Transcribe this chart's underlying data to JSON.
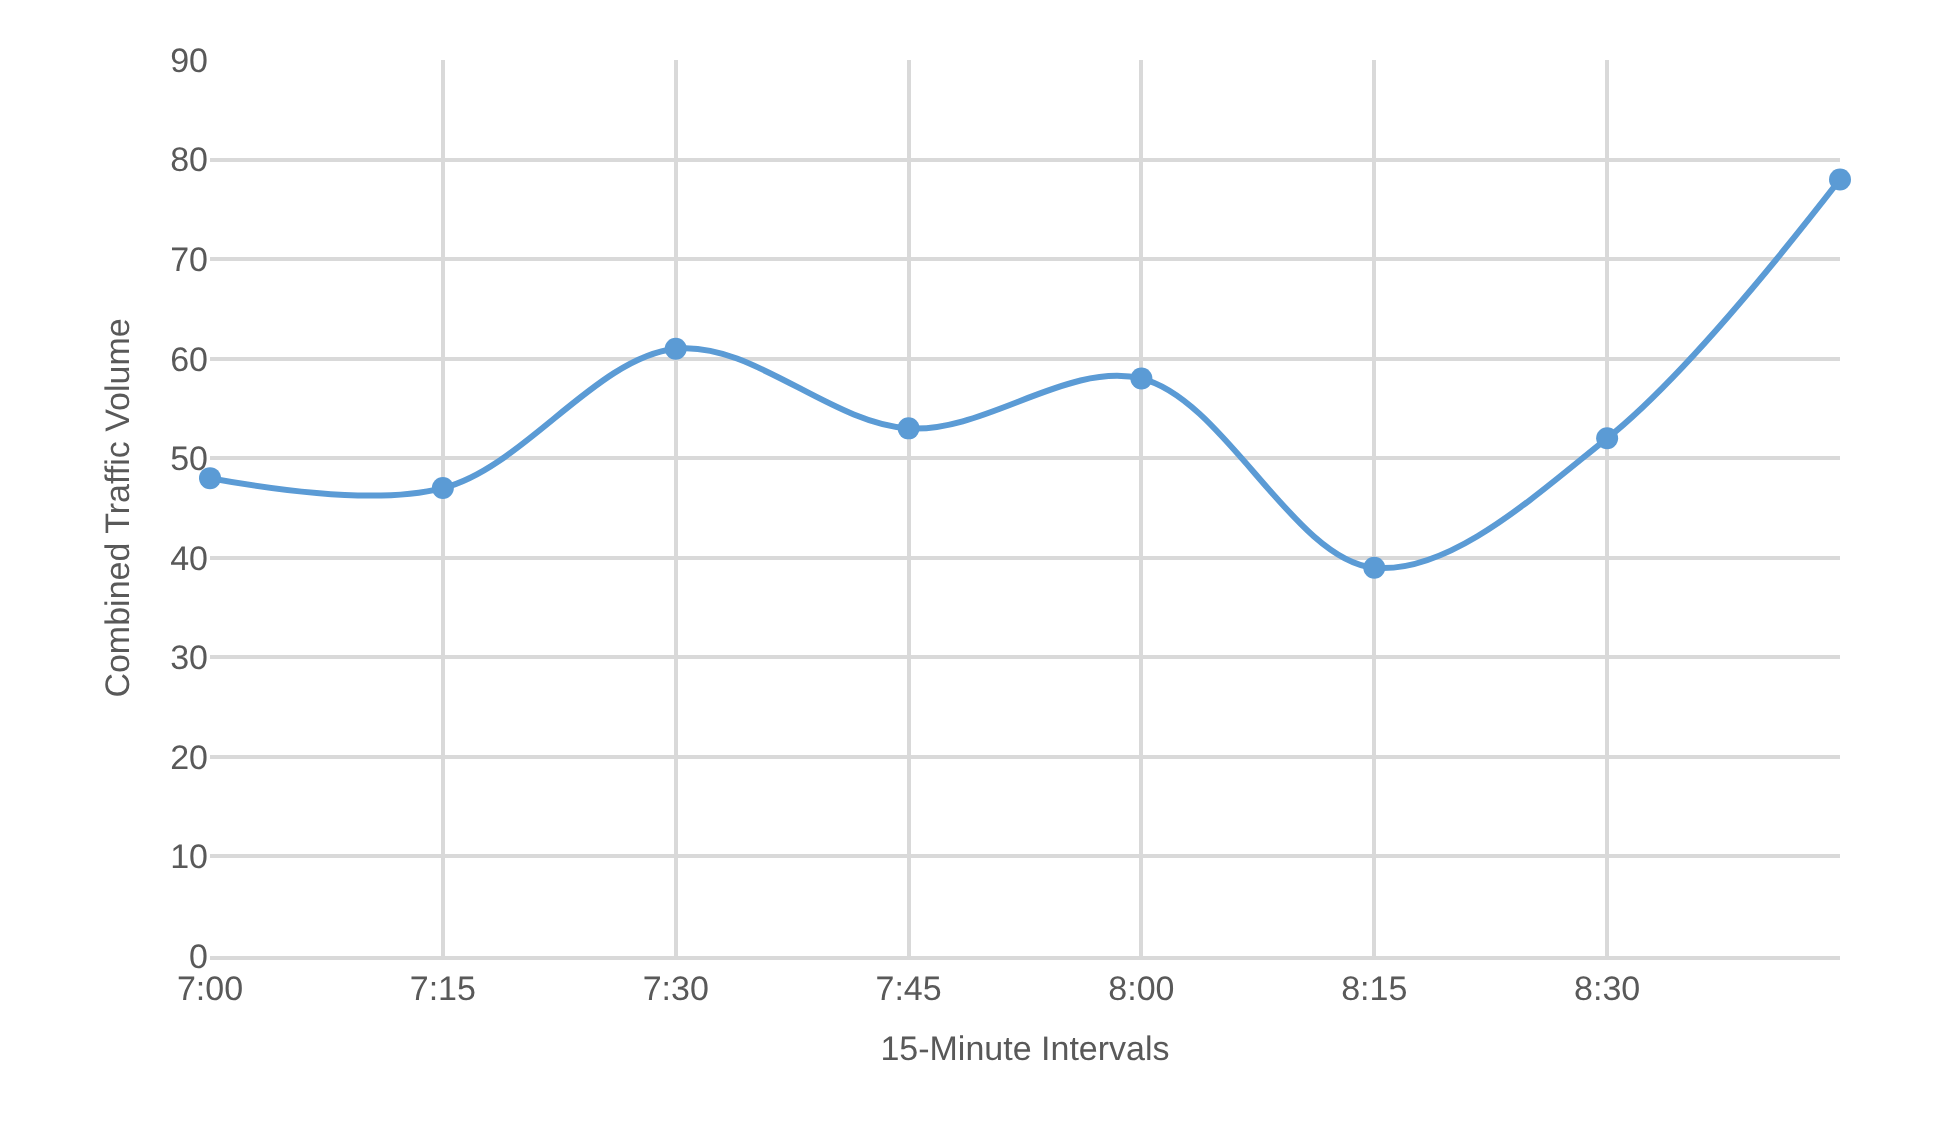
{
  "chart_data": {
    "type": "line",
    "xlabel": "15-Minute Intervals",
    "ylabel": "Combined Traffic Volume",
    "categories": [
      "7:00",
      "7:15",
      "7:30",
      "7:45",
      "8:00",
      "8:15",
      "8:30",
      null
    ],
    "series": [
      {
        "color": "#5b9bd5",
        "values": [
          48,
          47,
          61,
          53,
          58,
          39,
          52,
          78
        ]
      }
    ],
    "ylim": [
      0,
      90
    ],
    "yticks": [
      0,
      10,
      20,
      30,
      40,
      50,
      60,
      70,
      80,
      90
    ],
    "grid": true,
    "marker": "circle",
    "line_style": "solid",
    "legend": false
  }
}
